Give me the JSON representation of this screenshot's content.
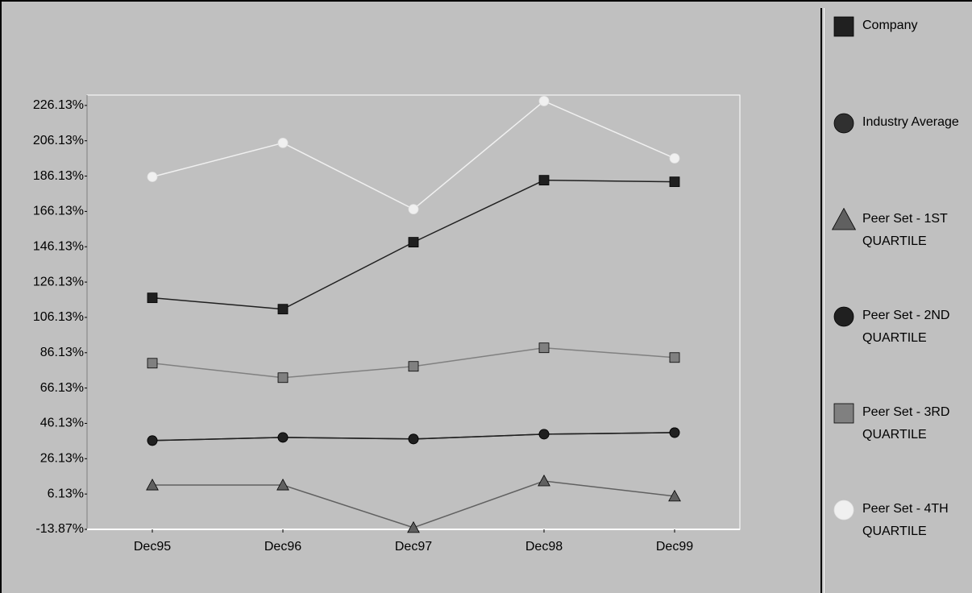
{
  "chart_data": {
    "type": "line",
    "categories": [
      "Dec95",
      "Dec96",
      "Dec97",
      "Dec98",
      "Dec99"
    ],
    "series": [
      {
        "name": "Company",
        "color": "#202020",
        "marker": "square",
        "values": [
          117.2,
          110.8,
          148.7,
          183.8,
          182.9
        ]
      },
      {
        "name": "Industry Average",
        "color": "#303030",
        "marker": "circle",
        "values": [
          36.4,
          38.2,
          37.3,
          40.0,
          40.9
        ]
      },
      {
        "name": "Peer Set - 1ST QUARTILE",
        "color": "#606060",
        "marker": "triangle",
        "values": [
          11.2,
          11.2,
          -12.9,
          13.5,
          4.9
        ]
      },
      {
        "name": "Peer Set - 2ND QUARTILE",
        "color": "#202020",
        "marker": "circle",
        "values": [
          36.4,
          38.2,
          37.3,
          40.0,
          40.9
        ]
      },
      {
        "name": "Peer Set - 3RD QUARTILE",
        "color": "#808080",
        "marker": "square",
        "values": [
          80.2,
          72.0,
          78.4,
          88.9,
          83.4
        ]
      },
      {
        "name": "Peer Set - 4TH QUARTILE",
        "color": "#f0f0f0",
        "marker": "circle",
        "values": [
          185.7,
          204.9,
          167.4,
          228.6,
          196.2
        ]
      }
    ],
    "ylim": [
      -13.87,
      232
    ],
    "yticks": [
      {
        "value": -13.87,
        "label": "-13.87%"
      },
      {
        "value": 6.13,
        "label": "6.13%"
      },
      {
        "value": 26.13,
        "label": "26.13%"
      },
      {
        "value": 46.13,
        "label": "46.13%"
      },
      {
        "value": 66.13,
        "label": "66.13%"
      },
      {
        "value": 86.13,
        "label": "86.13%"
      },
      {
        "value": 106.13,
        "label": "106.13%"
      },
      {
        "value": 126.13,
        "label": "126.13%"
      },
      {
        "value": 146.13,
        "label": "146.13%"
      },
      {
        "value": 166.13,
        "label": "166.13%"
      },
      {
        "value": 186.13,
        "label": "186.13%"
      },
      {
        "value": 206.13,
        "label": "206.13%"
      },
      {
        "value": 226.13,
        "label": "226.13%"
      }
    ],
    "grid": false,
    "legend": "right"
  }
}
